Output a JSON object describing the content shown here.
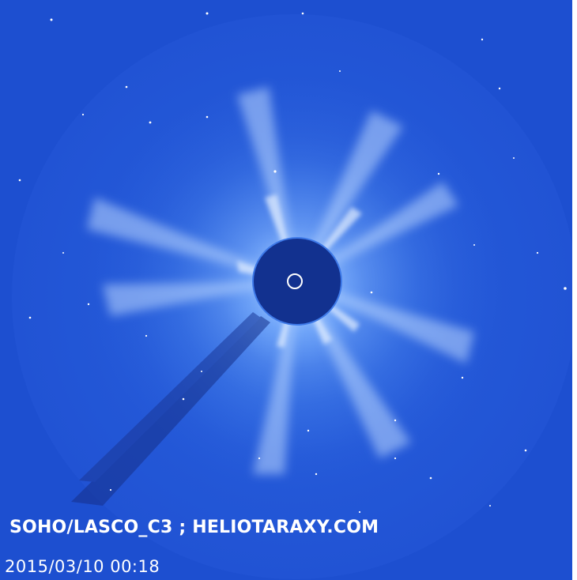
{
  "image": {
    "instrument_caption": "SOHO/LASCO_C3 ; HELIOTARAXY.COM",
    "timestamp": "2015/03/10 00:18",
    "colors": {
      "background": "#1d4fd0",
      "corona": "#2459d8",
      "occulter": "#12318f",
      "text": "#ffffff"
    }
  }
}
